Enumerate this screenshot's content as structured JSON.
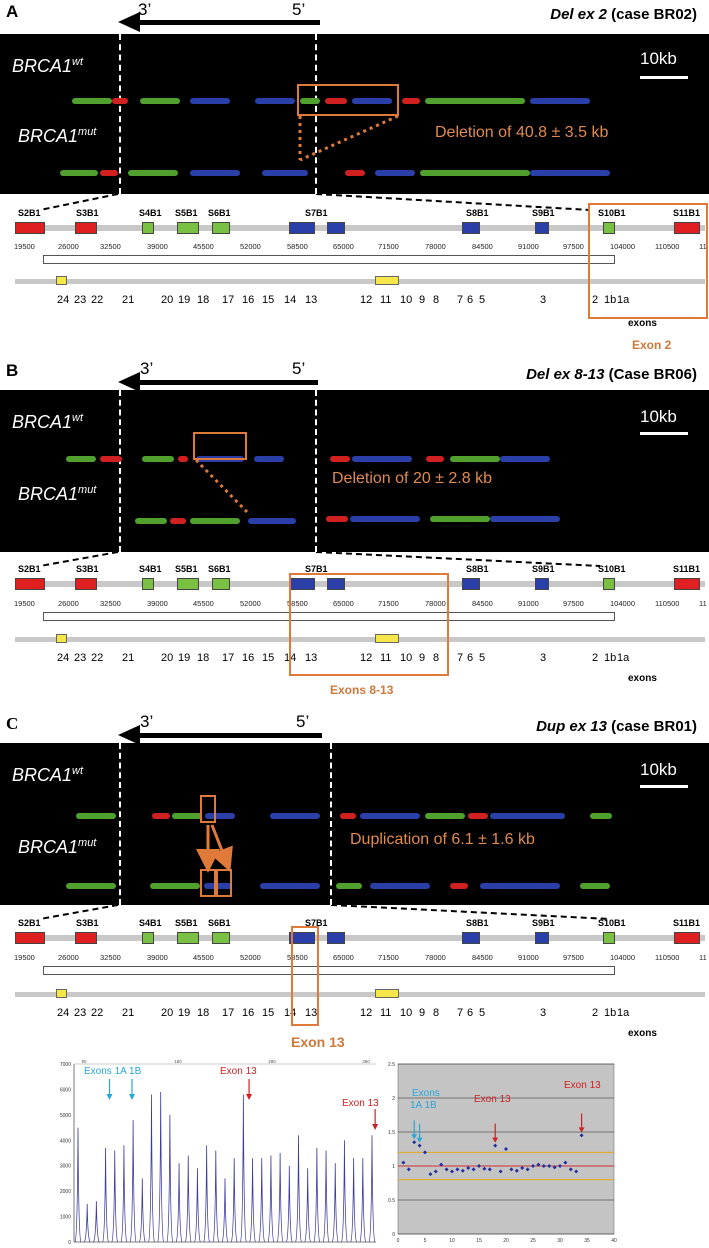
{
  "orientation": {
    "left": "3’",
    "right": "5’"
  },
  "genotype": {
    "wt": "BRCA1",
    "wt_sup": "wt",
    "mut": "BRCA1",
    "mut_sup": "mut"
  },
  "scalebar": "10kb",
  "panels": [
    {
      "letter": "A",
      "title_italic": "Del ex 2",
      "title_rest": " (case BR02)",
      "note": "Deletion of 40.8 ± 3.5 kb",
      "caption": "Exon 2"
    },
    {
      "letter": "B",
      "title_italic": "Del ex 8-13",
      "title_rest": " (Case BR06)",
      "note": "Deletion of 20 ± 2.8 kb",
      "caption": "Exons 8-13"
    },
    {
      "letter": "C",
      "title_italic": "Dup ex 13",
      "title_rest": " (case BR01)",
      "note": "Duplication of 6.1 ± 1.6 kb",
      "caption": "Exon 13"
    }
  ],
  "probes": [
    "S2B1",
    "S3B1",
    "S4B1",
    "S5B1",
    "S6B1",
    "S7B1",
    "S8B1",
    "S9B1",
    "S10B1",
    "S11B1"
  ],
  "probe_colors": {
    "red": "#e02020",
    "green": "#7ac143",
    "blue": "#2a3fa8"
  },
  "coordinates": [
    "19500",
    "26000",
    "32500",
    "39000",
    "45500",
    "52000",
    "58500",
    "65000",
    "71500",
    "78000",
    "84500",
    "91000",
    "97500",
    "104000",
    "110500",
    "11"
  ],
  "exons": [
    "24",
    "23",
    "22",
    "21",
    "20",
    "19",
    "18",
    "17",
    "16",
    "15",
    "14",
    "13",
    "12",
    "11",
    "10",
    "9",
    "8",
    "7",
    "6",
    "5",
    "3",
    "2",
    "1b",
    "1a"
  ],
  "exons_word": "exons",
  "mlpa": {
    "left_labels": {
      "exons_1a1b": "Exons 1A 1B",
      "exon13_a": "Exon 13",
      "exon13_b": "Exon 13"
    },
    "right_labels": {
      "exons": "Exons",
      "exons_1a1b": "1A 1B",
      "exon13_a": "Exon 13",
      "exon13_b": "Exon 13"
    },
    "left_axis_y": [
      "7000",
      "6000",
      "5000",
      "4000",
      "3000",
      "2000",
      "1000",
      "0"
    ],
    "right_axis_y": [
      "2.5",
      "2",
      "1.5",
      "1",
      "0.5",
      "0"
    ],
    "right_axis_x": [
      "0",
      "5",
      "10",
      "15",
      "20",
      "25",
      "30",
      "35",
      "40"
    ],
    "top_ticks": [
      "90",
      "180",
      "280",
      "360"
    ]
  },
  "chart_data": [
    {
      "type": "line",
      "title": "",
      "xlabel": "",
      "ylabel": "",
      "ylim": [
        0,
        7000
      ],
      "peaks": [
        4500,
        1500,
        1600,
        3700,
        3600,
        3800,
        4800,
        2500,
        5800,
        5900,
        5000,
        3100,
        3400,
        2900,
        3800,
        3600,
        2500,
        3300,
        5800,
        3300,
        3300,
        3400,
        3500,
        3000,
        4200,
        2900,
        3700,
        3600,
        3100,
        4000,
        3300,
        3300,
        4200
      ],
      "annotations": [
        "Exons 1A 1B",
        "Exon 13",
        "Exon 13"
      ]
    },
    {
      "type": "scatter",
      "title": "",
      "xlabel": "",
      "ylabel": "",
      "xlim": [
        0,
        40
      ],
      "ylim": [
        0,
        2.5
      ],
      "x": [
        1,
        2,
        3,
        4,
        5,
        6,
        7,
        8,
        9,
        10,
        11,
        12,
        13,
        14,
        15,
        16,
        17,
        18,
        19,
        20,
        21,
        22,
        23,
        24,
        25,
        26,
        27,
        28,
        29,
        30,
        31,
        32,
        33,
        34
      ],
      "y": [
        1.05,
        0.95,
        1.35,
        1.3,
        1.2,
        0.88,
        0.92,
        1.02,
        0.95,
        0.92,
        0.95,
        0.93,
        0.97,
        0.95,
        1.0,
        0.96,
        0.95,
        1.3,
        0.92,
        1.25,
        0.95,
        0.93,
        0.97,
        0.95,
        1.0,
        1.02,
        1.0,
        1.0,
        0.98,
        1.0,
        1.05,
        0.95,
        0.92,
        1.45
      ],
      "reference_lines": [
        0.8,
        1.0,
        1.2
      ],
      "grid": true,
      "annotations": [
        "Exons",
        "1A 1B",
        "Exon 13",
        "Exon 13"
      ]
    }
  ]
}
